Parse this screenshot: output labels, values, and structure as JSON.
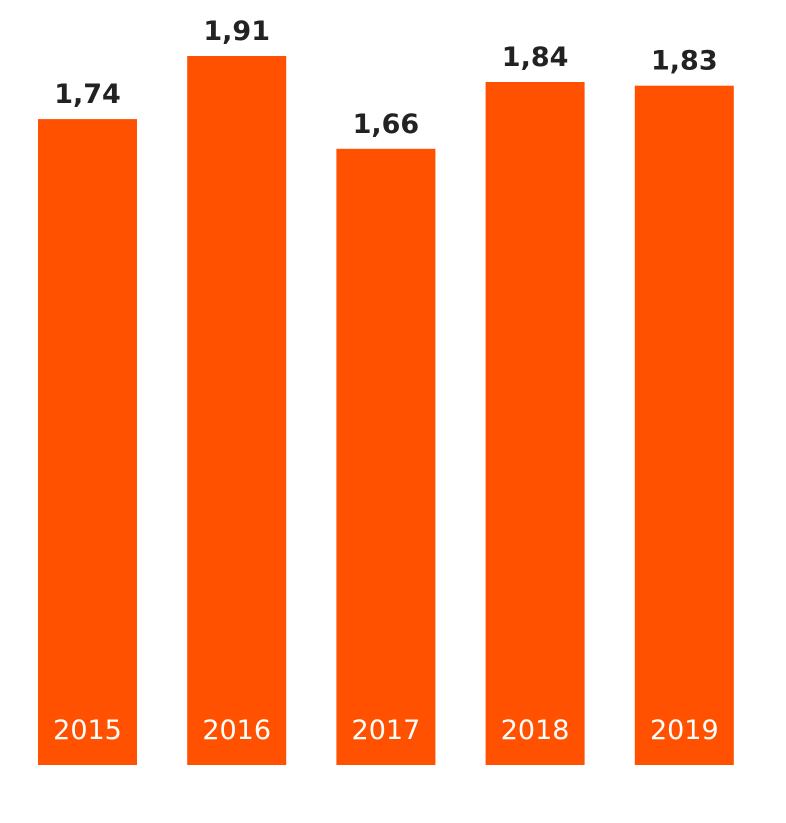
{
  "chart_data": {
    "type": "bar",
    "categories": [
      "2015",
      "2016",
      "2017",
      "2018",
      "2019"
    ],
    "values": [
      1.74,
      1.91,
      1.66,
      1.84,
      1.83
    ],
    "value_labels": [
      "1,74",
      "1,91",
      "1,66",
      "1,84",
      "1,83"
    ],
    "title": "",
    "xlabel": "",
    "ylabel": "",
    "ylim": [
      0,
      1.91
    ],
    "grid": false,
    "legend": "none",
    "bar_color": "#ff5100",
    "category_label_position": "inside-bottom"
  }
}
